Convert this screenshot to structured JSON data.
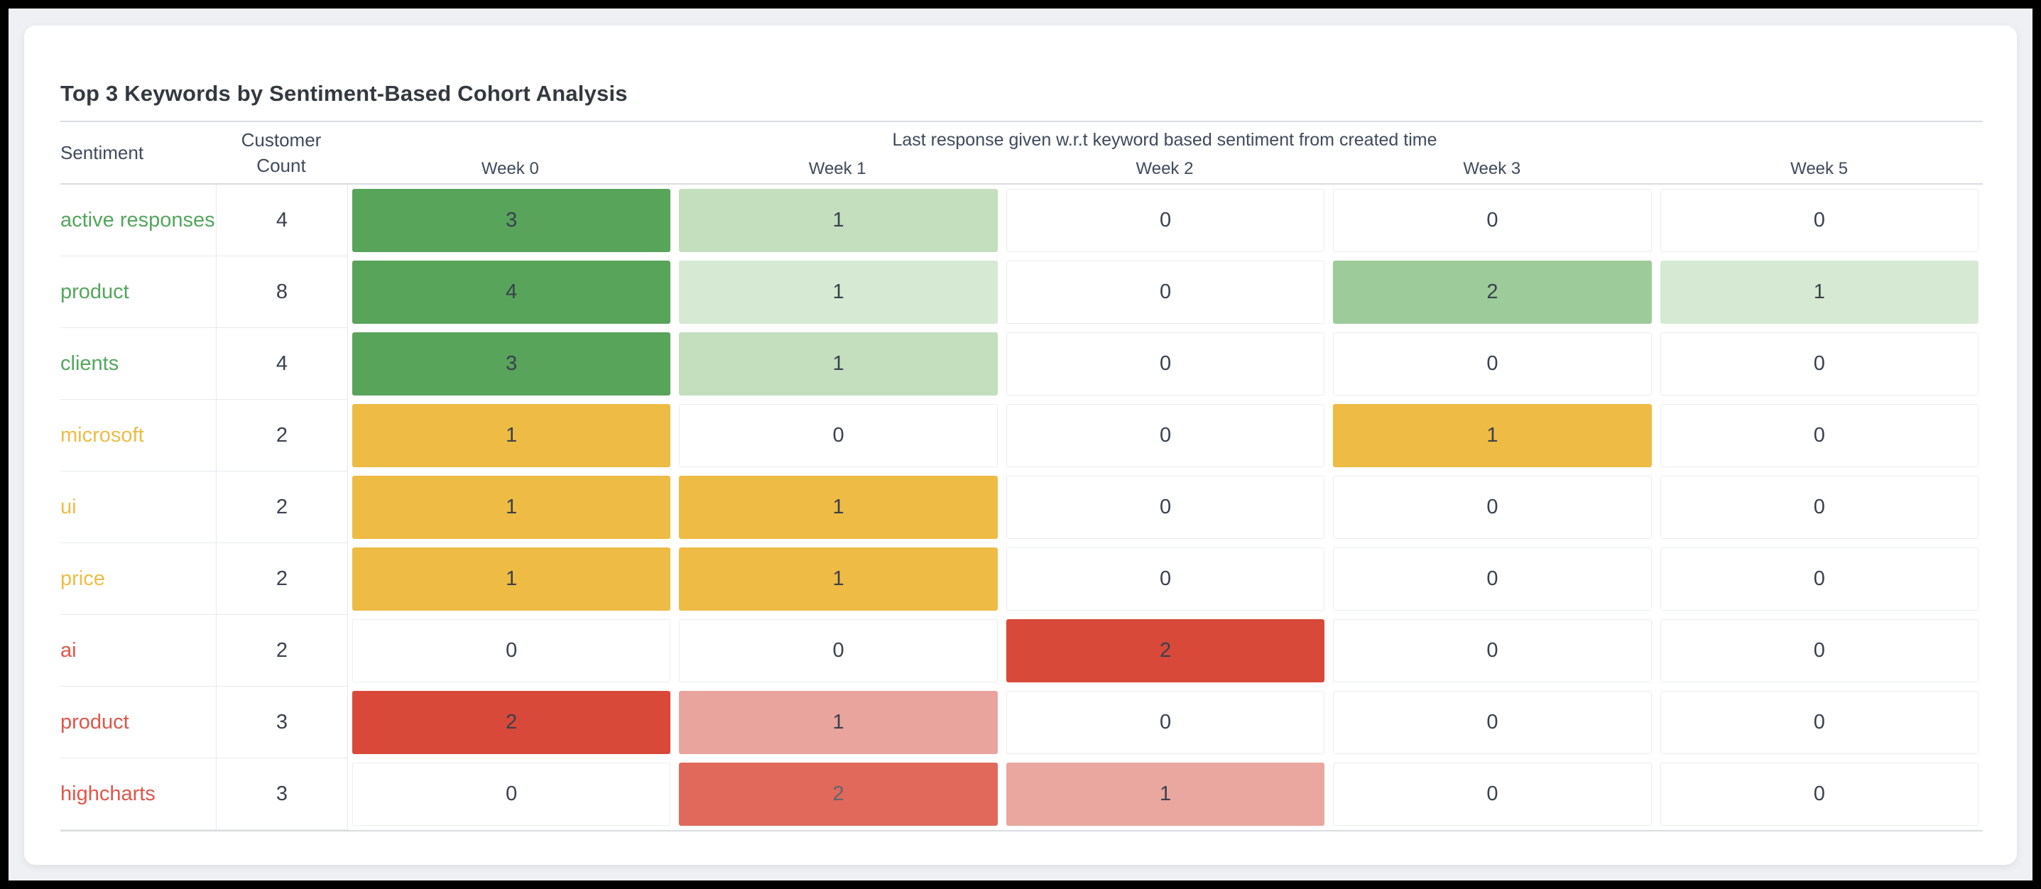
{
  "title": "Top 3 Keywords by Sentiment-Based Cohort Analysis",
  "table": {
    "headers": {
      "sentiment": "Sentiment",
      "customer_count": "Customer Count",
      "group": "Last response given w.r.t keyword based sentiment from created time",
      "weeks": [
        "Week 0",
        "Week 1",
        "Week 2",
        "Week 3",
        "Week 5"
      ]
    },
    "rows": [
      {
        "keyword": "active responses",
        "sentiment": "positive",
        "count": "4",
        "cells": [
          {
            "v": "3",
            "bg": "#57a45a"
          },
          {
            "v": "1",
            "bg": "#c3dfbe"
          },
          {
            "v": "0"
          },
          {
            "v": "0"
          },
          {
            "v": "0"
          }
        ]
      },
      {
        "keyword": "product",
        "sentiment": "positive",
        "count": "8",
        "cells": [
          {
            "v": "4",
            "bg": "#57a45a"
          },
          {
            "v": "1",
            "bg": "#d6e9d2"
          },
          {
            "v": "0"
          },
          {
            "v": "2",
            "bg": "#9ecb9a"
          },
          {
            "v": "1",
            "bg": "#d6e9d2"
          }
        ]
      },
      {
        "keyword": "clients",
        "sentiment": "positive",
        "count": "4",
        "cells": [
          {
            "v": "3",
            "bg": "#57a45a"
          },
          {
            "v": "1",
            "bg": "#c3dfbe"
          },
          {
            "v": "0"
          },
          {
            "v": "0"
          },
          {
            "v": "0"
          }
        ]
      },
      {
        "keyword": "microsoft",
        "sentiment": "neutral",
        "count": "2",
        "cells": [
          {
            "v": "1",
            "bg": "#eebb44"
          },
          {
            "v": "0"
          },
          {
            "v": "0"
          },
          {
            "v": "1",
            "bg": "#eebb44"
          },
          {
            "v": "0"
          }
        ]
      },
      {
        "keyword": "ui",
        "sentiment": "neutral",
        "count": "2",
        "cells": [
          {
            "v": "1",
            "bg": "#eebb44"
          },
          {
            "v": "1",
            "bg": "#eebb44"
          },
          {
            "v": "0"
          },
          {
            "v": "0"
          },
          {
            "v": "0"
          }
        ]
      },
      {
        "keyword": "price",
        "sentiment": "neutral",
        "count": "2",
        "cells": [
          {
            "v": "1",
            "bg": "#eebb44"
          },
          {
            "v": "1",
            "bg": "#eebb44"
          },
          {
            "v": "0"
          },
          {
            "v": "0"
          },
          {
            "v": "0"
          }
        ]
      },
      {
        "keyword": "ai",
        "sentiment": "negative",
        "count": "2",
        "cells": [
          {
            "v": "0"
          },
          {
            "v": "0"
          },
          {
            "v": "2",
            "bg": "#d8493a"
          },
          {
            "v": "0"
          },
          {
            "v": "0"
          }
        ]
      },
      {
        "keyword": "product",
        "sentiment": "negative",
        "count": "3",
        "cells": [
          {
            "v": "2",
            "bg": "#d8493a"
          },
          {
            "v": "1",
            "bg": "#e9a49d"
          },
          {
            "v": "0"
          },
          {
            "v": "0"
          },
          {
            "v": "0"
          }
        ]
      },
      {
        "keyword": "highcharts",
        "sentiment": "negative",
        "count": "3",
        "cells": [
          {
            "v": "0"
          },
          {
            "v": "2",
            "bg": "#e0695c",
            "fg": "#5f6771"
          },
          {
            "v": "1",
            "bg": "#eaa79f"
          },
          {
            "v": "0"
          },
          {
            "v": "0"
          }
        ]
      }
    ]
  },
  "colors": {
    "positive": "#53a65c",
    "neutral": "#eebc45",
    "negative": "#e25549",
    "cell_green_strong": "#57a45a",
    "cell_yellow": "#eebb44",
    "cell_red_strong": "#d8493a",
    "card_background": "#ffffff",
    "page_background": "#eef0f3"
  },
  "chart_data": {
    "type": "heatmap",
    "title": "Top 3 Keywords by Sentiment-Based Cohort Analysis",
    "x_axis_group_label": "Last response given w.r.t keyword based sentiment from created time",
    "x_categories": [
      "Week 0",
      "Week 1",
      "Week 2",
      "Week 3",
      "Week 5"
    ],
    "row_axis_labels": [
      "Sentiment",
      "Customer Count"
    ],
    "rows": [
      {
        "keyword": "active responses",
        "sentiment": "positive",
        "customer_count": 4,
        "values": [
          3,
          1,
          0,
          0,
          0
        ]
      },
      {
        "keyword": "product",
        "sentiment": "positive",
        "customer_count": 8,
        "values": [
          4,
          1,
          0,
          2,
          1
        ]
      },
      {
        "keyword": "clients",
        "sentiment": "positive",
        "customer_count": 4,
        "values": [
          3,
          1,
          0,
          0,
          0
        ]
      },
      {
        "keyword": "microsoft",
        "sentiment": "neutral",
        "customer_count": 2,
        "values": [
          1,
          0,
          0,
          1,
          0
        ]
      },
      {
        "keyword": "ui",
        "sentiment": "neutral",
        "customer_count": 2,
        "values": [
          1,
          1,
          0,
          0,
          0
        ]
      },
      {
        "keyword": "price",
        "sentiment": "neutral",
        "customer_count": 2,
        "values": [
          1,
          1,
          0,
          0,
          0
        ]
      },
      {
        "keyword": "ai",
        "sentiment": "negative",
        "customer_count": 2,
        "values": [
          0,
          0,
          2,
          0,
          0
        ]
      },
      {
        "keyword": "product",
        "sentiment": "negative",
        "customer_count": 3,
        "values": [
          2,
          1,
          0,
          0,
          0
        ]
      },
      {
        "keyword": "highcharts",
        "sentiment": "negative",
        "customer_count": 3,
        "values": [
          0,
          2,
          1,
          0,
          0
        ]
      }
    ],
    "legend": "none",
    "grid": "off"
  }
}
